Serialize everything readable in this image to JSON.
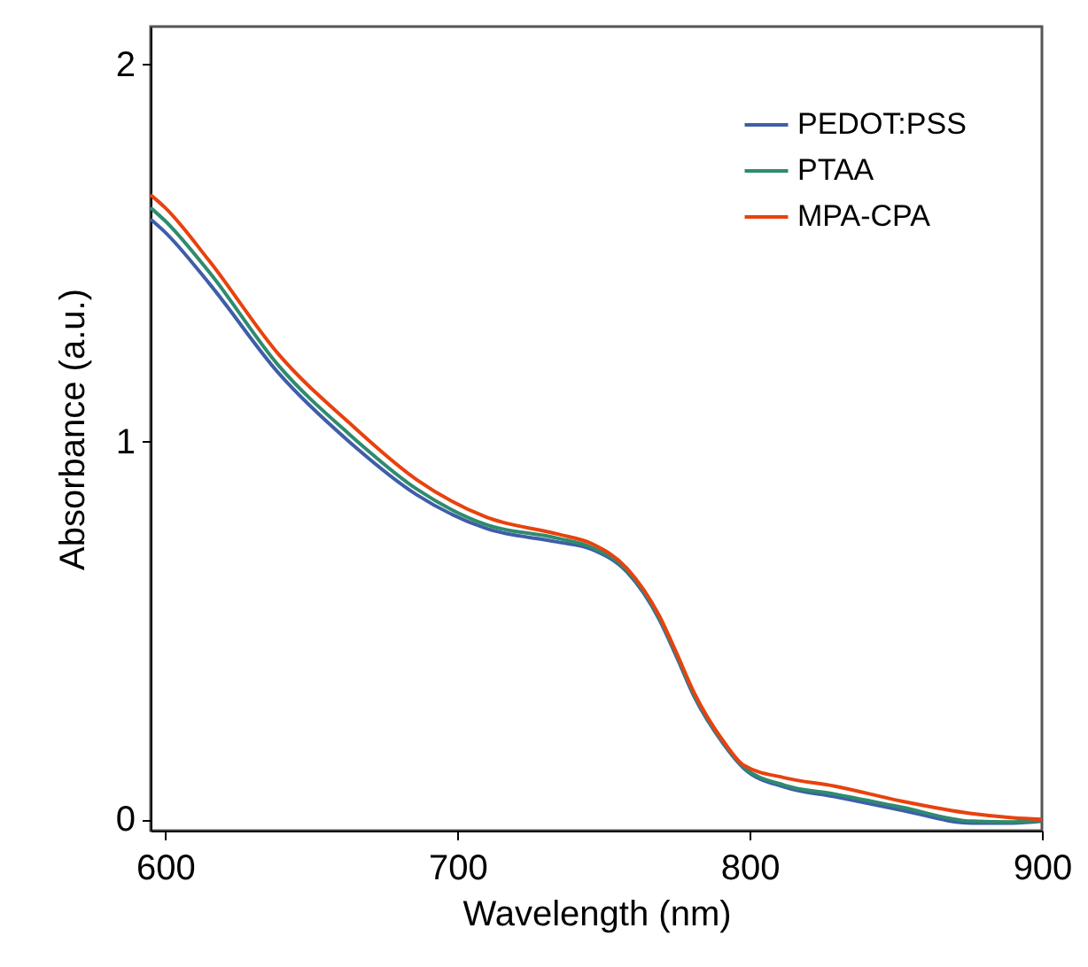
{
  "chart_data": {
    "type": "line",
    "xlabel": "Wavelength (nm)",
    "ylabel": "Absorbance (a.u.)",
    "x": [
      595,
      600,
      615,
      639,
      663,
      686,
      710,
      734,
      746,
      758,
      769,
      775,
      781,
      791,
      798,
      812,
      829,
      852,
      876,
      890,
      900
    ],
    "series": [
      {
        "name": "PEDOT:PSS",
        "color": "#3f5ea8",
        "values": [
          1.59,
          1.555,
          1.42,
          1.18,
          1.0,
          0.86,
          0.77,
          0.735,
          0.715,
          0.655,
          0.53,
          0.43,
          0.325,
          0.2,
          0.135,
          0.085,
          0.06,
          0.024,
          -0.01,
          -0.01,
          -0.005
        ]
      },
      {
        "name": "PTAA",
        "color": "#2e8b6e",
        "values": [
          1.62,
          1.585,
          1.45,
          1.2,
          1.02,
          0.875,
          0.78,
          0.745,
          0.72,
          0.66,
          0.535,
          0.435,
          0.33,
          0.203,
          0.138,
          0.09,
          0.067,
          0.032,
          -0.005,
          -0.007,
          -0.003
        ]
      },
      {
        "name": "MPA-CPA",
        "color": "#e8420e",
        "values": [
          1.654,
          1.62,
          1.48,
          1.23,
          1.05,
          0.9,
          0.8,
          0.756,
          0.73,
          0.665,
          0.54,
          0.44,
          0.335,
          0.207,
          0.143,
          0.11,
          0.088,
          0.048,
          0.015,
          0.004,
          0.0
        ]
      }
    ],
    "xlim": [
      595,
      900
    ],
    "xticks": [
      600,
      700,
      800,
      900
    ],
    "ylim": [
      -0.03,
      2.1
    ],
    "yticks": [
      0,
      1,
      2
    ],
    "grid": false,
    "legend": "top right",
    "marker": "none",
    "line_style": "solid"
  }
}
